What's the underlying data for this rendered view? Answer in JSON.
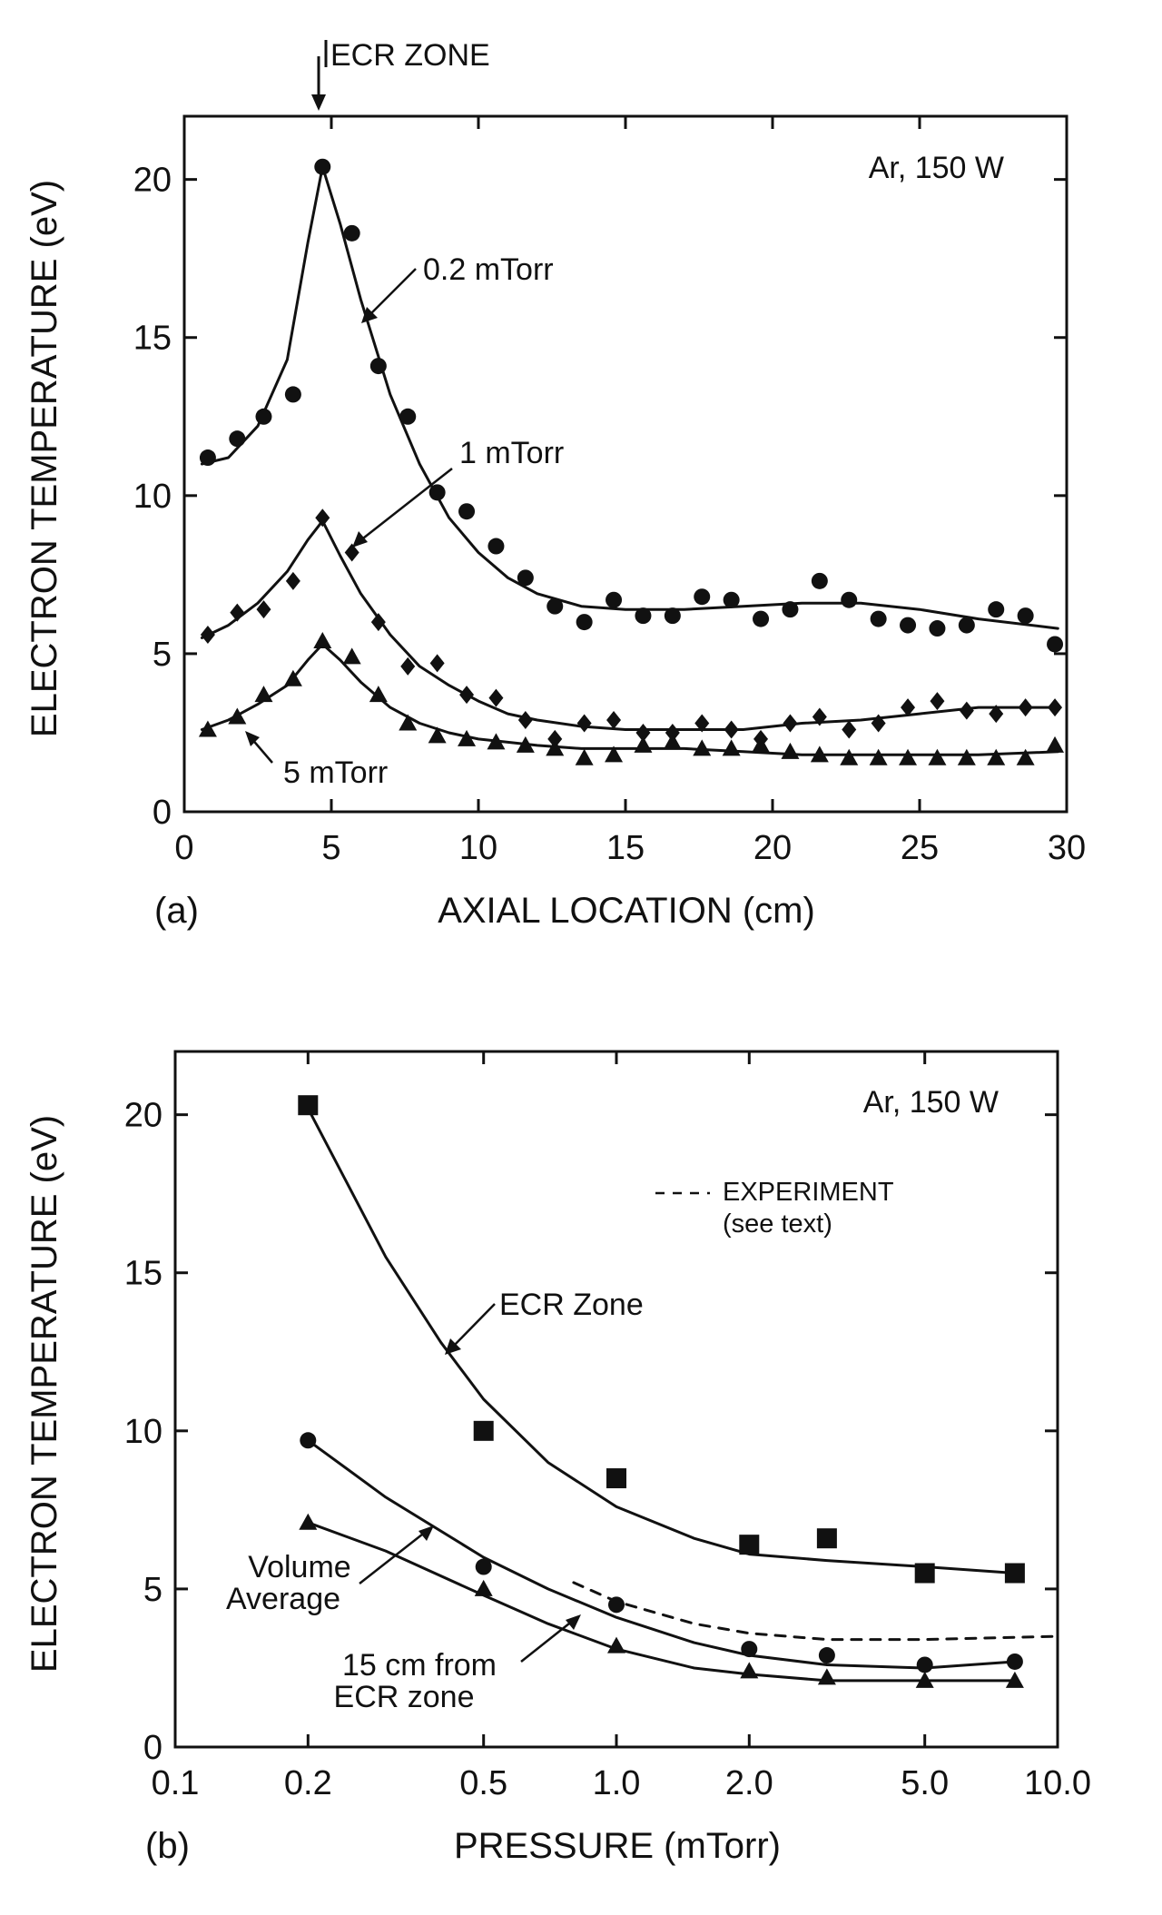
{
  "chart_data": [
    {
      "panel_label": "(a)",
      "type": "scatter",
      "title": "",
      "annotation": "Ar, 150 W",
      "marker_label": "ECR ZONE",
      "marker_x": 4.7,
      "xlabel": "AXIAL LOCATION (cm)",
      "ylabel": "ELECTRON TEMPERATURE (eV)",
      "xlim": [
        0,
        30
      ],
      "ylim": [
        0,
        22
      ],
      "xticks": [
        0,
        5,
        10,
        15,
        20,
        25,
        30
      ],
      "yticks": [
        0,
        5,
        10,
        15,
        20
      ],
      "series": [
        {
          "name": "0.2 mTorr",
          "marker": "circle",
          "x": [
            0.8,
            1.8,
            2.7,
            3.7,
            4.7,
            5.7,
            6.6,
            7.6,
            8.6,
            9.6,
            10.6,
            11.6,
            12.6,
            13.6,
            14.6,
            15.6,
            16.6,
            17.6,
            18.6,
            19.6,
            20.6,
            21.6,
            22.6,
            23.6,
            24.6,
            25.6,
            26.6,
            27.6,
            28.6,
            29.6
          ],
          "y": [
            11.2,
            11.8,
            12.5,
            13.2,
            20.4,
            18.3,
            14.1,
            12.5,
            10.1,
            9.5,
            8.4,
            7.4,
            6.5,
            6.0,
            6.7,
            6.2,
            6.2,
            6.8,
            6.7,
            6.1,
            6.4,
            7.3,
            6.7,
            6.1,
            5.9,
            5.8,
            5.9,
            6.4,
            6.2,
            5.3
          ],
          "fit_x": [
            0.6,
            1.5,
            2.5,
            3.5,
            4.2,
            4.7,
            5.3,
            6.0,
            7.0,
            8.0,
            9.0,
            10.0,
            11.0,
            12.0,
            13.5,
            15.0,
            17.0,
            19.0,
            21.0,
            23.0,
            25.0,
            27.0,
            29.7
          ],
          "fit_y": [
            11.0,
            11.2,
            12.2,
            14.3,
            18.0,
            20.4,
            18.6,
            16.2,
            13.2,
            11.0,
            9.3,
            8.2,
            7.4,
            6.9,
            6.5,
            6.4,
            6.4,
            6.5,
            6.6,
            6.6,
            6.4,
            6.1,
            5.8
          ]
        },
        {
          "name": "1 mTorr",
          "marker": "diamond",
          "x": [
            0.8,
            1.8,
            2.7,
            3.7,
            4.7,
            5.7,
            6.6,
            7.6,
            8.6,
            9.6,
            10.6,
            11.6,
            12.6,
            13.6,
            14.6,
            15.6,
            16.6,
            17.6,
            18.6,
            19.6,
            20.6,
            21.6,
            22.6,
            23.6,
            24.6,
            25.6,
            26.6,
            27.6,
            28.6,
            29.6
          ],
          "y": [
            5.6,
            6.3,
            6.4,
            7.3,
            9.3,
            8.2,
            6.0,
            4.6,
            4.7,
            3.7,
            3.6,
            2.9,
            2.3,
            2.8,
            2.9,
            2.5,
            2.5,
            2.8,
            2.6,
            2.3,
            2.8,
            3.0,
            2.6,
            2.8,
            3.3,
            3.5,
            3.2,
            3.1,
            3.3,
            3.3
          ],
          "fit_x": [
            0.6,
            1.5,
            2.5,
            3.5,
            4.2,
            4.7,
            5.3,
            6.0,
            7.0,
            8.0,
            9.0,
            10.0,
            11.0,
            12.0,
            13.5,
            15.0,
            17.0,
            19.0,
            21.0,
            23.0,
            25.0,
            27.0,
            29.7
          ],
          "fit_y": [
            5.5,
            5.9,
            6.6,
            7.6,
            8.6,
            9.2,
            8.1,
            6.9,
            5.6,
            4.6,
            4.0,
            3.5,
            3.1,
            2.9,
            2.7,
            2.6,
            2.6,
            2.6,
            2.8,
            2.9,
            3.1,
            3.3,
            3.3
          ]
        },
        {
          "name": "5 mTorr",
          "marker": "triangle",
          "x": [
            0.8,
            1.8,
            2.7,
            3.7,
            4.7,
            5.7,
            6.6,
            7.6,
            8.6,
            9.6,
            10.6,
            11.6,
            12.6,
            13.6,
            14.6,
            15.6,
            16.6,
            17.6,
            18.6,
            19.6,
            20.6,
            21.6,
            22.6,
            23.6,
            24.6,
            25.6,
            26.6,
            27.6,
            28.6,
            29.6
          ],
          "y": [
            2.6,
            3.0,
            3.7,
            4.2,
            5.4,
            4.9,
            3.7,
            2.8,
            2.4,
            2.3,
            2.2,
            2.1,
            2.0,
            1.7,
            1.8,
            2.1,
            2.2,
            2.0,
            2.0,
            2.1,
            1.9,
            1.8,
            1.7,
            1.7,
            1.7,
            1.7,
            1.7,
            1.7,
            1.7,
            2.1
          ],
          "fit_x": [
            0.6,
            1.5,
            2.5,
            3.5,
            4.2,
            4.7,
            5.3,
            6.0,
            7.0,
            8.0,
            9.0,
            10.0,
            11.0,
            12.0,
            13.5,
            15.0,
            17.0,
            19.0,
            21.0,
            23.0,
            25.0,
            27.0,
            29.7
          ],
          "fit_y": [
            2.6,
            2.9,
            3.4,
            4.0,
            4.8,
            5.3,
            4.8,
            4.1,
            3.3,
            2.8,
            2.5,
            2.3,
            2.2,
            2.1,
            2.0,
            2.0,
            2.0,
            1.9,
            1.8,
            1.8,
            1.8,
            1.8,
            1.9
          ]
        }
      ]
    },
    {
      "panel_label": "(b)",
      "type": "scatter",
      "title": "",
      "annotation": "Ar, 150 W",
      "legend_text": [
        "EXPERIMENT",
        "(see text)"
      ],
      "xlabel": "PRESSURE (mTorr)",
      "ylabel": "ELECTRON TEMPERATURE (eV)",
      "xscale": "log",
      "xlim": [
        0.1,
        10
      ],
      "ylim": [
        0,
        22
      ],
      "xticks": [
        0.1,
        0.2,
        0.5,
        1.0,
        2.0,
        5.0,
        10.0
      ],
      "xtick_labels": [
        "0.1",
        "0.2",
        "0.5",
        "1.0",
        "2.0",
        "5.0",
        "10.0"
      ],
      "yticks": [
        0,
        5,
        10,
        15,
        20
      ],
      "curve_labels": [
        "ECR Zone",
        "Volume",
        "Average",
        "15 cm from",
        "ECR zone"
      ],
      "series": [
        {
          "name": "ECR Zone",
          "marker": "square",
          "x": [
            0.2,
            0.5,
            1.0,
            2.0,
            3.0,
            5.0,
            8.0
          ],
          "y": [
            20.3,
            10.0,
            8.5,
            6.4,
            6.6,
            5.5,
            5.5
          ],
          "fit_x": [
            0.2,
            0.3,
            0.4,
            0.5,
            0.7,
            1.0,
            1.5,
            2.0,
            3.0,
            5.0,
            8.0
          ],
          "fit_y": [
            20.2,
            15.5,
            12.8,
            11.0,
            9.0,
            7.6,
            6.6,
            6.1,
            5.9,
            5.7,
            5.5
          ]
        },
        {
          "name": "Volume Average",
          "marker": "circle",
          "x": [
            0.2,
            0.5,
            1.0,
            2.0,
            3.0,
            5.0,
            8.0
          ],
          "y": [
            9.7,
            5.7,
            4.5,
            3.1,
            2.9,
            2.6,
            2.7
          ],
          "fit_x": [
            0.2,
            0.3,
            0.5,
            0.7,
            1.0,
            1.5,
            2.0,
            3.0,
            5.0,
            8.0
          ],
          "fit_y": [
            9.7,
            7.9,
            6.0,
            5.0,
            4.1,
            3.3,
            2.9,
            2.6,
            2.5,
            2.7
          ]
        },
        {
          "name": "15 cm from ECR zone",
          "marker": "triangle",
          "x": [
            0.2,
            0.5,
            1.0,
            2.0,
            3.0,
            5.0,
            8.0
          ],
          "y": [
            7.1,
            5.0,
            3.2,
            2.4,
            2.2,
            2.1,
            2.1
          ],
          "fit_x": [
            0.2,
            0.3,
            0.5,
            0.7,
            1.0,
            1.5,
            2.0,
            3.0,
            5.0,
            8.0
          ],
          "fit_y": [
            7.1,
            6.2,
            4.8,
            3.9,
            3.1,
            2.5,
            2.3,
            2.1,
            2.1,
            2.1
          ]
        },
        {
          "name": "EXPERIMENT",
          "marker": "none",
          "linestyle": "dashed",
          "fit_x": [
            0.8,
            1.0,
            1.5,
            2.0,
            3.0,
            5.0,
            10.0
          ],
          "fit_y": [
            5.2,
            4.6,
            3.9,
            3.6,
            3.4,
            3.4,
            3.5
          ]
        }
      ]
    }
  ]
}
